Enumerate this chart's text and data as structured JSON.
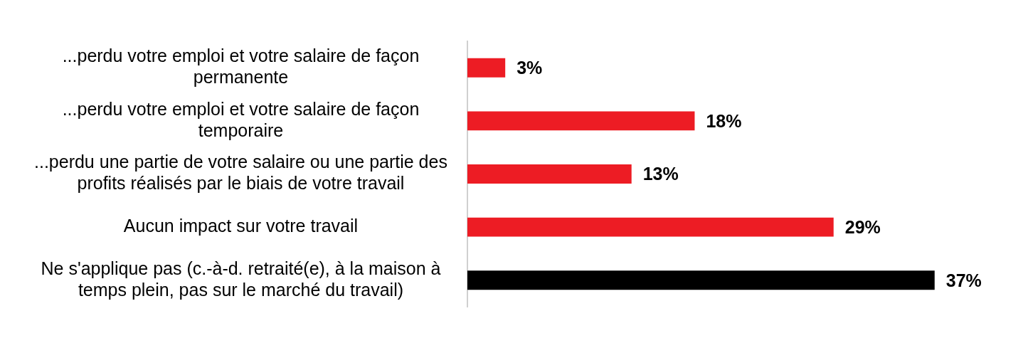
{
  "chart_data": {
    "type": "bar",
    "orientation": "horizontal",
    "categories": [
      "...perdu votre emploi et votre salaire de façon permanente",
      "...perdu votre emploi et votre salaire de façon temporaire",
      "...perdu une partie de votre salaire ou une partie des profits réalisés par le biais de votre travail",
      "Aucun impact sur votre travail",
      "Ne s'applique pas (c.-à-d. retraité(e), à la maison à temps plein, pas sur le marché du travail)"
    ],
    "values": [
      3,
      18,
      13,
      29,
      37
    ],
    "colors": [
      "#ed1c24",
      "#ed1c24",
      "#ed1c24",
      "#ed1c24",
      "#000000"
    ],
    "value_labels": [
      "3%",
      "18%",
      "13%",
      "29%",
      "37%"
    ],
    "legend": false
  }
}
